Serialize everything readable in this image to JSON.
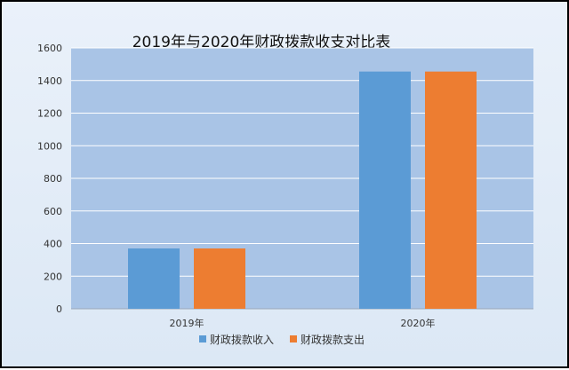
{
  "chart_data": {
    "type": "bar",
    "title": "2019年与2020年财政拨款收支对比表",
    "xlabel": "",
    "ylabel": "",
    "categories": [
      "2019年",
      "2020年"
    ],
    "series": [
      {
        "name": "财政拨款收入",
        "values": [
          370,
          1455
        ],
        "color": "#5b9bd5"
      },
      {
        "name": "财政拨款支出",
        "values": [
          370,
          1455
        ],
        "color": "#ed7d31"
      }
    ],
    "ylim": [
      0,
      1600
    ],
    "yticks": [
      0,
      200,
      400,
      600,
      800,
      1000,
      1200,
      1400,
      1600
    ],
    "grid": true,
    "legend_position": "bottom",
    "plot_background": "#a9c4e6",
    "gridline_color": "#ffffff"
  }
}
